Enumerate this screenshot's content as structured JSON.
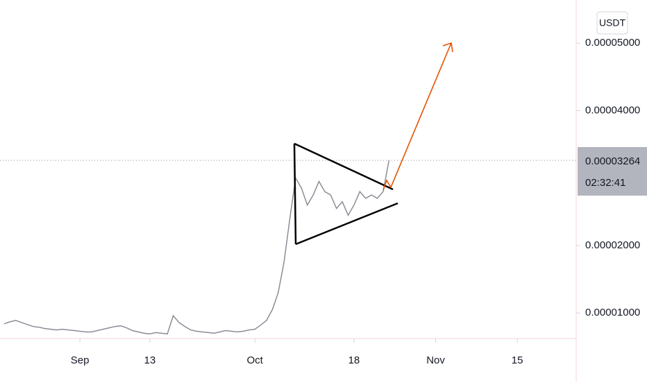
{
  "chart_data": {
    "type": "line",
    "currency": "USDT",
    "countdown": "02:32:41",
    "current_price": 3.264e-05,
    "x": [
      -13,
      -12,
      -11,
      -10,
      -9,
      -8,
      -7,
      -6,
      -5,
      -4,
      -3,
      -2,
      -1,
      0,
      1,
      2,
      3,
      4,
      5,
      6,
      7,
      8,
      9,
      10,
      11,
      12,
      13,
      14,
      15,
      16,
      17,
      18,
      19,
      20,
      21,
      22,
      23,
      24,
      25,
      26,
      27,
      28,
      29,
      30,
      31,
      32,
      33,
      34,
      35,
      36,
      37,
      38,
      39,
      40,
      41,
      42,
      43,
      44,
      45,
      46,
      47,
      48,
      49,
      50,
      51,
      52,
      53
    ],
    "series": [
      {
        "color": "#8a8d96",
        "values": [
          8.4e-06,
          8.7e-06,
          8.9e-06,
          8.6e-06,
          8.3e-06,
          8e-06,
          7.9e-06,
          7.7e-06,
          7.6e-06,
          7.5e-06,
          7.6e-06,
          7.5e-06,
          7.4e-06,
          7.3e-06,
          7.2e-06,
          7.2e-06,
          7.4e-06,
          7.6e-06,
          7.8e-06,
          8e-06,
          8.1e-06,
          7.8e-06,
          7.4e-06,
          7.2e-06,
          7e-06,
          6.9e-06,
          7.1e-06,
          7e-06,
          6.9e-06,
          9.6e-06,
          8.6e-06,
          8e-06,
          7.5e-06,
          7.3e-06,
          7.2e-06,
          7.1e-06,
          7e-06,
          7.2e-06,
          7.4e-06,
          7.3e-06,
          7.2e-06,
          7.3e-06,
          7.5e-06,
          7.6e-06,
          8.2e-06,
          8.9e-06,
          1.05e-05,
          1.3e-05,
          1.75e-05,
          2.4e-05,
          3e-05,
          2.85e-05,
          2.6e-05,
          2.75e-05,
          2.95e-05,
          2.8e-05,
          2.75e-05,
          2.55e-05,
          2.65e-05,
          2.45e-05,
          2.6e-05,
          2.8e-05,
          2.7e-05,
          2.75e-05,
          2.7e-05,
          2.8e-05,
          3.264e-05
        ]
      }
    ],
    "xlim": [
      -13.7,
      85.1
    ],
    "ylim": [
      6.22e-06,
      5.64e-05
    ],
    "xticks": [
      {
        "value": 0,
        "label": "Sep"
      },
      {
        "value": 12,
        "label": "13"
      },
      {
        "value": 30,
        "label": "Oct"
      },
      {
        "value": 47,
        "label": "18"
      },
      {
        "value": 61,
        "label": "Nov"
      },
      {
        "value": 75,
        "label": "15"
      }
    ],
    "yticks": [
      {
        "value": 1e-05,
        "label": "0.00001000"
      },
      {
        "value": 2e-05,
        "label": "0.00002000"
      },
      {
        "value": 4e-05,
        "label": "0.00004000"
      },
      {
        "value": 5e-05,
        "label": "0.00005000"
      }
    ]
  }
}
